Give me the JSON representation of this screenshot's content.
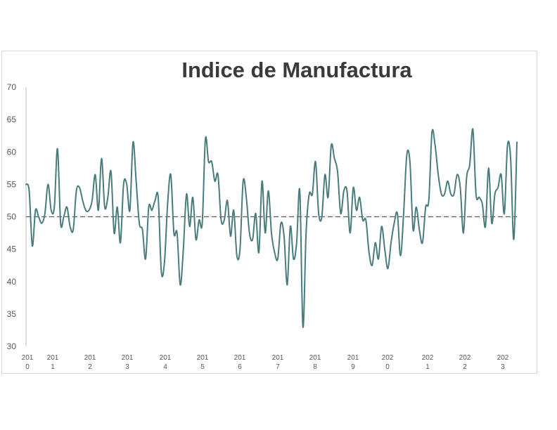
{
  "chart_data": {
    "type": "line",
    "title": "Indice de Manufactura",
    "xlabel": "",
    "ylabel": "",
    "ylim": [
      30,
      70
    ],
    "yticks": [
      30,
      35,
      40,
      45,
      50,
      55,
      60,
      65,
      70
    ],
    "reference_line": {
      "value": 50,
      "style": "dashed",
      "color": "#595959"
    },
    "x_tick_labels": [
      [
        "201",
        "0"
      ],
      [
        "201",
        "1"
      ],
      [
        "201",
        "2"
      ],
      [
        "201",
        "3"
      ],
      [
        "201",
        "4"
      ],
      [
        "201",
        "5"
      ],
      [
        "201",
        "6"
      ],
      [
        "201",
        "7"
      ],
      [
        "201",
        "8"
      ],
      [
        "201",
        "9"
      ],
      [
        "202",
        "0"
      ],
      [
        "202",
        "1"
      ],
      [
        "202",
        "2"
      ],
      [
        "202",
        "3"
      ]
    ],
    "x_start": 2010.0,
    "x_step": 0.0833,
    "series": [
      {
        "color": "#4a7c7c",
        "values": [
          55.0,
          54.0,
          45.5,
          51.0,
          50.0,
          49.0,
          50.5,
          55.0,
          51.0,
          51.5,
          60.5,
          49.0,
          50.0,
          51.5,
          48.5,
          48.0,
          54.0,
          54.5,
          52.5,
          51.0,
          51.0,
          52.5,
          56.5,
          51.0,
          59.0,
          51.5,
          53.0,
          57.0,
          47.5,
          51.5,
          46.0,
          55.0,
          55.0,
          51.0,
          61.5,
          55.5,
          49.0,
          48.0,
          43.5,
          51.5,
          51.0,
          52.5,
          53.0,
          41.5,
          43.0,
          52.0,
          56.5,
          47.5,
          47.5,
          39.5,
          45.0,
          53.5,
          48.5,
          53.0,
          46.5,
          49.5,
          49.0,
          62.0,
          58.5,
          58.5,
          55.5,
          56.5,
          49.5,
          49.5,
          52.5,
          47.0,
          51.0,
          44.0,
          45.0,
          55.5,
          53.0,
          47.5,
          46.5,
          50.5,
          44.5,
          55.5,
          47.5,
          54.0,
          47.5,
          44.5,
          43.5,
          49.0,
          47.0,
          39.5,
          48.5,
          43.5,
          46.0,
          54.0,
          33.0,
          47.5,
          53.5,
          53.5,
          58.5,
          50.5,
          50.0,
          56.5,
          53.0,
          61.0,
          59.0,
          57.0,
          50.5,
          54.0,
          54.0,
          47.5,
          54.5,
          51.0,
          53.0,
          49.5,
          49.5,
          44.5,
          42.5,
          46.0,
          43.5,
          48.5,
          45.0,
          42.0,
          46.0,
          49.0,
          50.5,
          44.0,
          50.5,
          59.5,
          58.5,
          48.0,
          51.5,
          48.0,
          46.0,
          51.5,
          52.5,
          63.0,
          61.0,
          56.5,
          53.5,
          53.5,
          55.5,
          53.5,
          53.5,
          56.5,
          54.5,
          47.5,
          56.0,
          58.0,
          63.5,
          53.5,
          53.0,
          52.0,
          48.5,
          57.5,
          49.0,
          53.5,
          54.5,
          56.5,
          50.5,
          61.0,
          59.0,
          46.5,
          61.5
        ]
      }
    ],
    "grid": false,
    "legend": "none"
  }
}
